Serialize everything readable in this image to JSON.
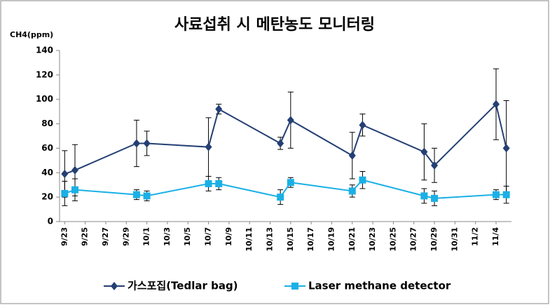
{
  "chart_data": {
    "type": "line",
    "title": "사료섭취 시 메탄농도 모니터링",
    "y_label": "CH4(ppm)",
    "x": [
      "9/23",
      "9/24",
      "9/30",
      "10/1",
      "10/7",
      "10/8",
      "10/14",
      "10/15",
      "10/21",
      "10/22",
      "10/28",
      "10/29",
      "11/4",
      "11/5"
    ],
    "xlim": [
      "9/23",
      "11/5"
    ],
    "xticks": [
      "9/23",
      "9/25",
      "9/27",
      "9/29",
      "10/1",
      "10/3",
      "10/5",
      "10/7",
      "10/9",
      "10/11",
      "10/13",
      "10/15",
      "10/17",
      "10/19",
      "10/21",
      "10/23",
      "10/25",
      "10/27",
      "10/29",
      "10/31",
      "11/2",
      "11/4"
    ],
    "ylim": [
      0,
      140
    ],
    "yticks": [
      0,
      20,
      40,
      60,
      80,
      100,
      120,
      140
    ],
    "series": [
      {
        "name": "가스포집(Tedlar bag)",
        "color": "#243f73",
        "marker": "diamond",
        "values": [
          39,
          42,
          64,
          64,
          61,
          92,
          64,
          83,
          54,
          79,
          57,
          46,
          96,
          60
        ],
        "errors": [
          19,
          21,
          19,
          10,
          24,
          4,
          5,
          23,
          19,
          9,
          23,
          14,
          29,
          39
        ]
      },
      {
        "name": "Laser methane detector",
        "color": "#1ab0e6",
        "marker": "square",
        "values": [
          23,
          26,
          22,
          21,
          31,
          31,
          20,
          32,
          25,
          34,
          21,
          19,
          22,
          22
        ],
        "errors": [
          10,
          9,
          4,
          4,
          6,
          5,
          6,
          4,
          5,
          7,
          6,
          6,
          4,
          7
        ]
      }
    ]
  }
}
